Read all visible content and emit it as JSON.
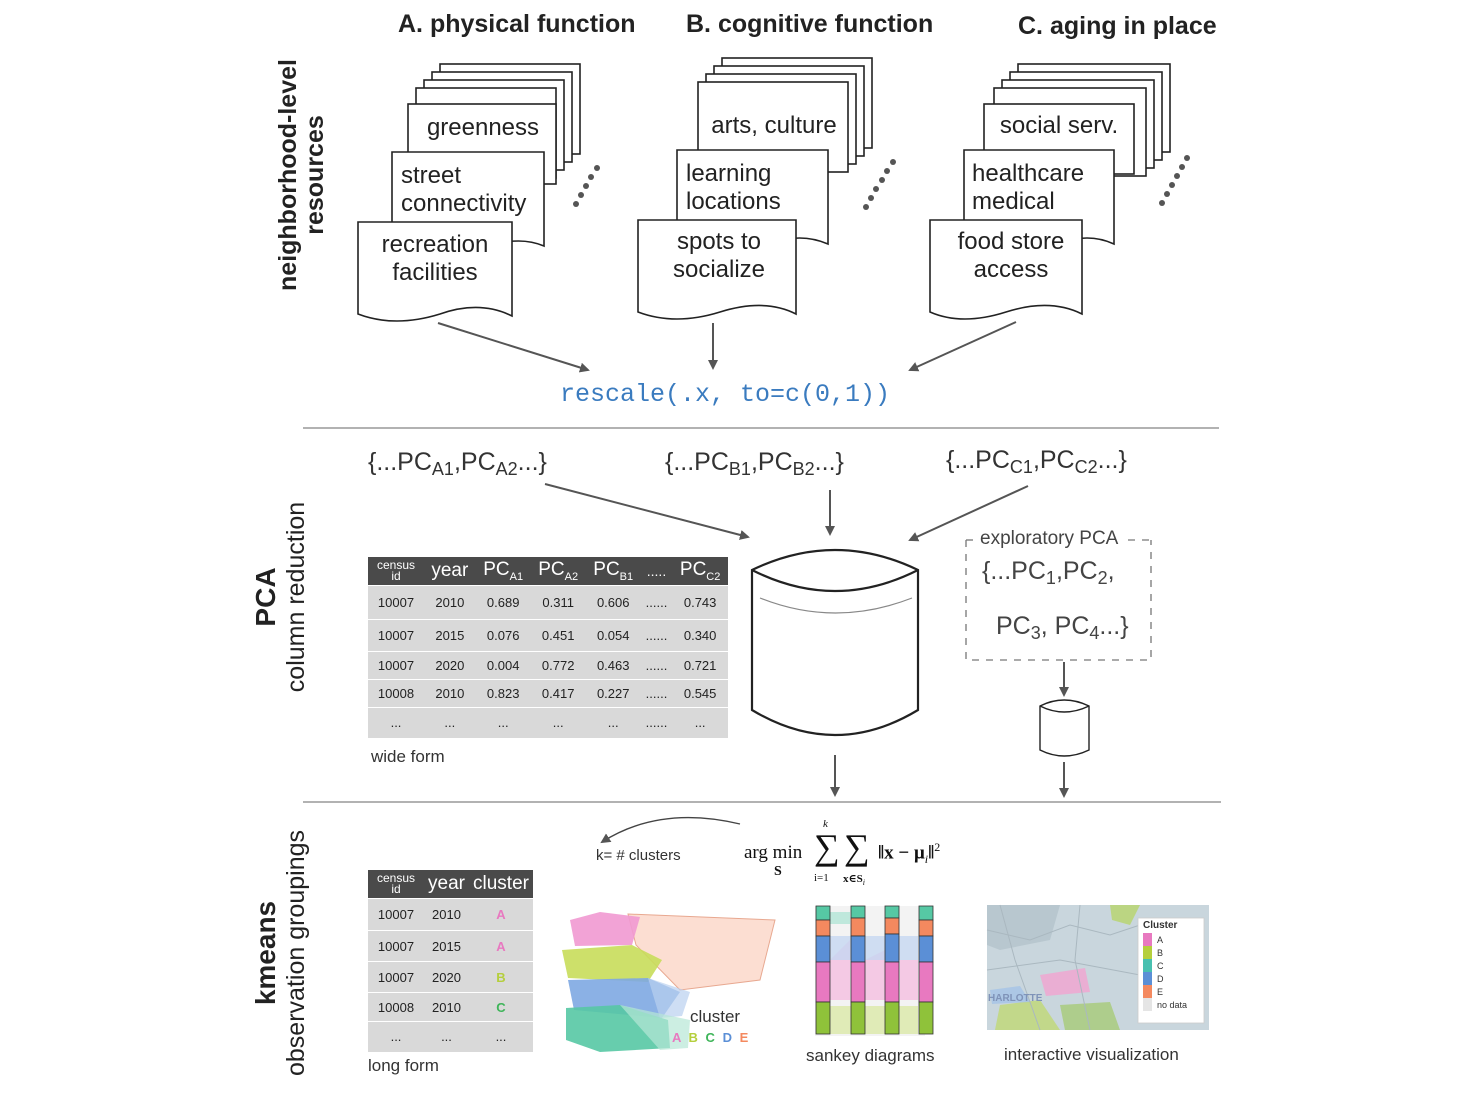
{
  "headers": {
    "a": "A. physical function",
    "b": "B. cognitive function",
    "c": "C. aging in place"
  },
  "row_labels": {
    "resources": "neighborhood-level resources",
    "pca_title": "PCA",
    "pca_sub": "column reduction",
    "kmeans_title": "kmeans",
    "kmeans_sub": "observation groupings"
  },
  "docs": {
    "a": [
      "greenness",
      "street connectivity",
      "recreation facilities"
    ],
    "b": [
      "arts, culture",
      "learning locations",
      "spots to socialize"
    ],
    "c": [
      "social serv.",
      "healthcare medical",
      "food store access"
    ]
  },
  "rescale_code": "rescale(.x, to=c(0,1))",
  "pc_sets": {
    "a": {
      "pre": "{...PC",
      "s1": "A1",
      "mid": ",PC",
      "s2": "A2",
      "post": "...}"
    },
    "b": {
      "pre": "{...PC",
      "s1": "B1",
      "mid": ",PC",
      "s2": "B2",
      "post": "...}"
    },
    "c": {
      "pre": "{...PC",
      "s1": "C1",
      "mid": ",PC",
      "s2": "C2",
      "post": "...}"
    }
  },
  "exploratory": {
    "title": "exploratory PCA",
    "line1": {
      "pre": "{...PC",
      "s1": "1",
      "mid": ",PC",
      "s2": "2",
      "post": ","
    },
    "line2": {
      "pre": "PC",
      "s1": "3",
      "mid": ", PC",
      "s2": "4",
      "post": "...}"
    }
  },
  "wide_table": {
    "caption": "wide form",
    "header_census": "census",
    "header_id": "id",
    "headers": [
      "year",
      "PC",
      "PC",
      "PC",
      ".....",
      "PC"
    ],
    "header_subs": [
      "",
      "A1",
      "A2",
      "B1",
      "",
      "C2"
    ],
    "rows": [
      [
        "10007",
        "2010",
        "0.689",
        "0.311",
        "0.606",
        "......",
        "0.743"
      ],
      [
        "10007",
        "2015",
        "0.076",
        "0.451",
        "0.054",
        "......",
        "0.340"
      ],
      [
        "10007",
        "2020",
        "0.004",
        "0.772",
        "0.463",
        "......",
        "0.721"
      ],
      [
        "10008",
        "2010",
        "0.823",
        "0.417",
        "0.227",
        "......",
        "0.545"
      ],
      [
        "...",
        "...",
        "...",
        "...",
        "...",
        "......",
        "..."
      ]
    ]
  },
  "long_table": {
    "caption": "long form",
    "header_census": "census",
    "header_id": "id",
    "headers": [
      "year",
      "cluster"
    ],
    "rows": [
      [
        "10007",
        "2010",
        "A"
      ],
      [
        "10007",
        "2015",
        "A"
      ],
      [
        "10007",
        "2020",
        "B"
      ],
      [
        "10008",
        "2010",
        "C"
      ],
      [
        "...",
        "...",
        "..."
      ]
    ]
  },
  "cluster_colors": {
    "A": "#e879c0",
    "B": "#b5cf3d",
    "C": "#3fb55a",
    "D": "#5b8fd6",
    "E": "#f4895f"
  },
  "k_label": "k= # clusters",
  "formula": {
    "argmin": "arg min",
    "s": "S",
    "k": "k",
    "i1": "i=1",
    "xs": "x∈S",
    "xs_sub": "i",
    "body": "‖x − μ",
    "body_sub": "i",
    "close": "‖",
    "power": "2"
  },
  "scatter": {
    "title": "cluster",
    "letters": [
      "A",
      "B",
      "C",
      "D",
      "E"
    ]
  },
  "sankey_caption": "sankey diagrams",
  "interactive": {
    "caption": "interactive visualization",
    "legend_title": "Cluster",
    "legend_items": [
      "A",
      "B",
      "C",
      "D",
      "E",
      "no data"
    ],
    "legend_colors": [
      "#e879c0",
      "#b5cf3d",
      "#48c0b0",
      "#5b8fd6",
      "#f4895f",
      "#e5e5e5"
    ],
    "map_label": "HARLOTTE"
  }
}
